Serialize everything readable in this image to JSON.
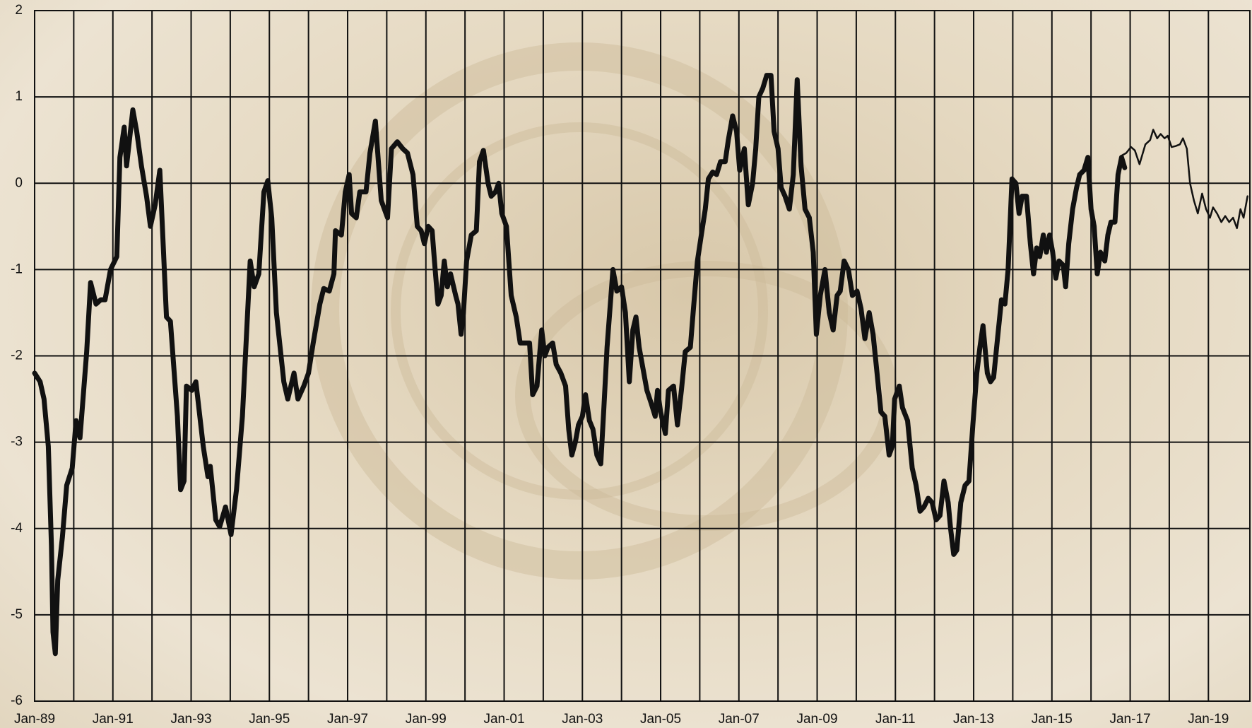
{
  "chart_data": {
    "type": "line",
    "xlim": [
      1989,
      2020.06
    ],
    "ylim": [
      -6,
      2
    ],
    "yticks": [
      -6,
      -5,
      -4,
      -3,
      -2,
      -1,
      0,
      1,
      2
    ],
    "xticks": [
      {
        "value": 1989,
        "label": "Jan-89"
      },
      {
        "value": 1991,
        "label": "Jan-91"
      },
      {
        "value": 1993,
        "label": "Jan-93"
      },
      {
        "value": 1995,
        "label": "Jan-95"
      },
      {
        "value": 1997,
        "label": "Jan-97"
      },
      {
        "value": 1999,
        "label": "Jan-99"
      },
      {
        "value": 2001,
        "label": "Jan-01"
      },
      {
        "value": 2003,
        "label": "Jan-03"
      },
      {
        "value": 2005,
        "label": "Jan-05"
      },
      {
        "value": 2007,
        "label": "Jan-07"
      },
      {
        "value": 2009,
        "label": "Jan-09"
      },
      {
        "value": 2011,
        "label": "Jan-11"
      },
      {
        "value": 2013,
        "label": "Jan-13"
      },
      {
        "value": 2015,
        "label": "Jan-15"
      },
      {
        "value": 2017,
        "label": "Jan-17"
      },
      {
        "value": 2019,
        "label": "Jan-19"
      }
    ],
    "x_minor_ticks": [
      1990,
      1992,
      1994,
      1996,
      1998,
      2000,
      2002,
      2004,
      2006,
      2008,
      2010,
      2012,
      2014,
      2016,
      2018
    ],
    "grid": true,
    "series": [
      {
        "color": "#111111",
        "line_width": 7,
        "x": [
          1989.0,
          1989.14,
          1989.24,
          1989.35,
          1989.43,
          1989.47,
          1989.53,
          1989.59,
          1989.71,
          1989.82,
          1989.96,
          1990.06,
          1990.16,
          1990.33,
          1990.43,
          1990.57,
          1990.69,
          1990.8,
          1990.94,
          1991.1,
          1991.18,
          1991.29,
          1991.35,
          1991.51,
          1991.61,
          1991.73,
          1991.86,
          1991.96,
          1992.08,
          1992.2,
          1992.37,
          1992.47,
          1992.65,
          1992.73,
          1992.82,
          1992.88,
          1993.02,
          1993.12,
          1993.31,
          1993.43,
          1993.49,
          1993.63,
          1993.73,
          1993.88,
          1994.02,
          1994.16,
          1994.31,
          1994.51,
          1994.61,
          1994.73,
          1994.86,
          1994.96,
          1995.06,
          1995.18,
          1995.37,
          1995.47,
          1995.63,
          1995.73,
          1995.88,
          1996.0,
          1996.12,
          1996.29,
          1996.39,
          1996.53,
          1996.65,
          1996.69,
          1996.84,
          1996.94,
          1997.04,
          1997.1,
          1997.22,
          1997.31,
          1997.47,
          1997.57,
          1997.71,
          1997.86,
          1998.02,
          1998.12,
          1998.27,
          1998.41,
          1998.53,
          1998.67,
          1998.78,
          1998.88,
          1998.96,
          1999.06,
          1999.16,
          1999.22,
          1999.31,
          1999.39,
          1999.47,
          1999.55,
          1999.63,
          1999.76,
          1999.82,
          1999.9,
          1999.96,
          2000.04,
          2000.16,
          2000.29,
          2000.37,
          2000.47,
          2000.59,
          2000.67,
          2000.78,
          2000.86,
          2000.94,
          2001.06,
          2001.18,
          2001.31,
          2001.41,
          2001.53,
          2001.65,
          2001.73,
          2001.84,
          2001.96,
          2002.04,
          2002.12,
          2002.24,
          2002.33,
          2002.45,
          2002.57,
          2002.65,
          2002.73,
          2002.82,
          2002.9,
          2003.0,
          2003.08,
          2003.18,
          2003.27,
          2003.37,
          2003.47,
          2003.55,
          2003.63,
          2003.78,
          2003.88,
          2004.0,
          2004.1,
          2004.2,
          2004.29,
          2004.37,
          2004.45,
          2004.55,
          2004.65,
          2004.76,
          2004.86,
          2004.92,
          2005.0,
          2005.12,
          2005.2,
          2005.33,
          2005.43,
          2005.53,
          2005.63,
          2005.76,
          2005.84,
          2005.94,
          2006.04,
          2006.14,
          2006.22,
          2006.33,
          2006.43,
          2006.53,
          2006.65,
          2006.73,
          2006.84,
          2006.94,
          2007.02,
          2007.14,
          2007.24,
          2007.35,
          2007.43,
          2007.51,
          2007.61,
          2007.71,
          2007.82,
          2007.9,
          2008.0,
          2008.08,
          2008.18,
          2008.29,
          2008.39,
          2008.49,
          2008.59,
          2008.69,
          2008.8,
          2008.9,
          2008.98,
          2009.08,
          2009.2,
          2009.31,
          2009.41,
          2009.51,
          2009.59,
          2009.69,
          2009.8,
          2009.9,
          2010.02,
          2010.12,
          2010.22,
          2010.33,
          2010.43,
          2010.53,
          2010.63,
          2010.73,
          2010.84,
          2010.92,
          2010.98,
          2011.1,
          2011.18,
          2011.31,
          2011.43,
          2011.53,
          2011.63,
          2011.73,
          2011.84,
          2011.94,
          2012.04,
          2012.14,
          2012.24,
          2012.35,
          2012.41,
          2012.49,
          2012.57,
          2012.67,
          2012.78,
          2012.88,
          2012.98,
          2013.08,
          2013.16,
          2013.24,
          2013.35,
          2013.43,
          2013.51,
          2013.61,
          2013.71,
          2013.8,
          2013.88,
          2013.98,
          2014.08,
          2014.16,
          2014.24,
          2014.35,
          2014.45,
          2014.53,
          2014.61,
          2014.69,
          2014.78,
          2014.86,
          2014.94,
          2015.02,
          2015.1,
          2015.18,
          2015.29,
          2015.35,
          2015.43,
          2015.53,
          2015.63,
          2015.71,
          2015.82,
          2015.92,
          2016.0,
          2016.08,
          2016.16,
          2016.24,
          2016.35,
          2016.43,
          2016.51,
          2016.61,
          2016.69,
          2016.78,
          2016.86
        ],
        "values": [
          -2.2,
          -2.3,
          -2.5,
          -3.05,
          -4.2,
          -5.2,
          -5.45,
          -4.6,
          -4.1,
          -3.5,
          -3.3,
          -2.75,
          -2.95,
          -1.95,
          -1.15,
          -1.4,
          -1.35,
          -1.35,
          -1.0,
          -0.85,
          0.3,
          0.65,
          0.2,
          0.85,
          0.6,
          0.2,
          -0.15,
          -0.5,
          -0.25,
          0.15,
          -1.55,
          -1.6,
          -2.7,
          -3.55,
          -3.45,
          -2.35,
          -2.4,
          -2.3,
          -3.05,
          -3.4,
          -3.28,
          -3.9,
          -3.98,
          -3.75,
          -4.07,
          -3.55,
          -2.7,
          -0.9,
          -1.2,
          -1.05,
          -0.1,
          0.03,
          -0.4,
          -1.5,
          -2.3,
          -2.5,
          -2.2,
          -2.5,
          -2.35,
          -2.2,
          -1.85,
          -1.4,
          -1.22,
          -1.25,
          -1.05,
          -0.55,
          -0.6,
          -0.1,
          0.1,
          -0.35,
          -0.4,
          -0.1,
          -0.1,
          0.35,
          0.72,
          -0.2,
          -0.4,
          0.4,
          0.48,
          0.4,
          0.35,
          0.1,
          -0.5,
          -0.55,
          -0.7,
          -0.5,
          -0.55,
          -0.9,
          -1.4,
          -1.3,
          -0.9,
          -1.2,
          -1.05,
          -1.3,
          -1.4,
          -1.75,
          -1.5,
          -0.9,
          -0.6,
          -0.55,
          0.25,
          0.38,
          0.0,
          -0.15,
          -0.1,
          0.0,
          -0.35,
          -0.5,
          -1.3,
          -1.55,
          -1.85,
          -1.85,
          -1.85,
          -2.45,
          -2.35,
          -1.7,
          -2.0,
          -1.9,
          -1.85,
          -2.1,
          -2.2,
          -2.35,
          -2.85,
          -3.15,
          -3.0,
          -2.8,
          -2.7,
          -2.45,
          -2.75,
          -2.85,
          -3.15,
          -3.25,
          -2.6,
          -1.9,
          -1.0,
          -1.25,
          -1.2,
          -1.5,
          -2.3,
          -1.7,
          -1.55,
          -1.9,
          -2.15,
          -2.4,
          -2.55,
          -2.7,
          -2.4,
          -2.65,
          -2.9,
          -2.4,
          -2.35,
          -2.8,
          -2.4,
          -1.95,
          -1.9,
          -1.45,
          -0.9,
          -0.6,
          -0.3,
          0.05,
          0.13,
          0.1,
          0.25,
          0.25,
          0.5,
          0.78,
          0.6,
          0.15,
          0.4,
          -0.25,
          0.0,
          0.4,
          1.0,
          1.1,
          1.25,
          1.25,
          0.6,
          0.4,
          -0.05,
          -0.15,
          -0.3,
          0.1,
          1.2,
          0.2,
          -0.3,
          -0.4,
          -0.8,
          -1.75,
          -1.3,
          -1.0,
          -1.5,
          -1.7,
          -1.3,
          -1.25,
          -0.9,
          -1.0,
          -1.3,
          -1.25,
          -1.45,
          -1.8,
          -1.5,
          -1.75,
          -2.2,
          -2.65,
          -2.7,
          -3.15,
          -3.05,
          -2.5,
          -2.35,
          -2.6,
          -2.75,
          -3.3,
          -3.5,
          -3.8,
          -3.75,
          -3.65,
          -3.7,
          -3.9,
          -3.85,
          -3.45,
          -3.7,
          -4.0,
          -4.3,
          -4.25,
          -3.7,
          -3.5,
          -3.45,
          -2.8,
          -2.2,
          -1.9,
          -1.65,
          -2.2,
          -2.3,
          -2.25,
          -1.8,
          -1.35,
          -1.4,
          -1.0,
          0.05,
          0.0,
          -0.35,
          -0.15,
          -0.15,
          -0.7,
          -1.05,
          -0.75,
          -0.85,
          -0.6,
          -0.8,
          -0.6,
          -0.8,
          -1.1,
          -0.9,
          -0.95,
          -1.2,
          -0.7,
          -0.3,
          -0.05,
          0.1,
          0.15,
          0.3,
          -0.3,
          -0.5,
          -1.05,
          -0.8,
          -0.9,
          -0.6,
          -0.45,
          -0.45,
          0.1,
          0.3,
          0.18
        ]
      },
      {
        "color": "#111111",
        "line_width": 2.5,
        "x": [
          2016.78,
          2016.9,
          2017.02,
          2017.12,
          2017.24,
          2017.39,
          2017.51,
          2017.59,
          2017.69,
          2017.78,
          2017.88,
          2017.96,
          2018.06,
          2018.16,
          2018.27,
          2018.35,
          2018.45,
          2018.53,
          2018.63,
          2018.73,
          2018.84,
          2018.94,
          2019.04,
          2019.12,
          2019.22,
          2019.33,
          2019.43,
          2019.53,
          2019.63,
          2019.73,
          2019.82,
          2019.9,
          2020.0
        ],
        "values": [
          0.32,
          0.35,
          0.42,
          0.38,
          0.22,
          0.45,
          0.5,
          0.62,
          0.52,
          0.57,
          0.52,
          0.55,
          0.42,
          0.43,
          0.45,
          0.52,
          0.4,
          0.0,
          -0.2,
          -0.35,
          -0.12,
          -0.3,
          -0.4,
          -0.28,
          -0.35,
          -0.45,
          -0.38,
          -0.45,
          -0.4,
          -0.52,
          -0.3,
          -0.4,
          -0.15
        ]
      }
    ]
  }
}
